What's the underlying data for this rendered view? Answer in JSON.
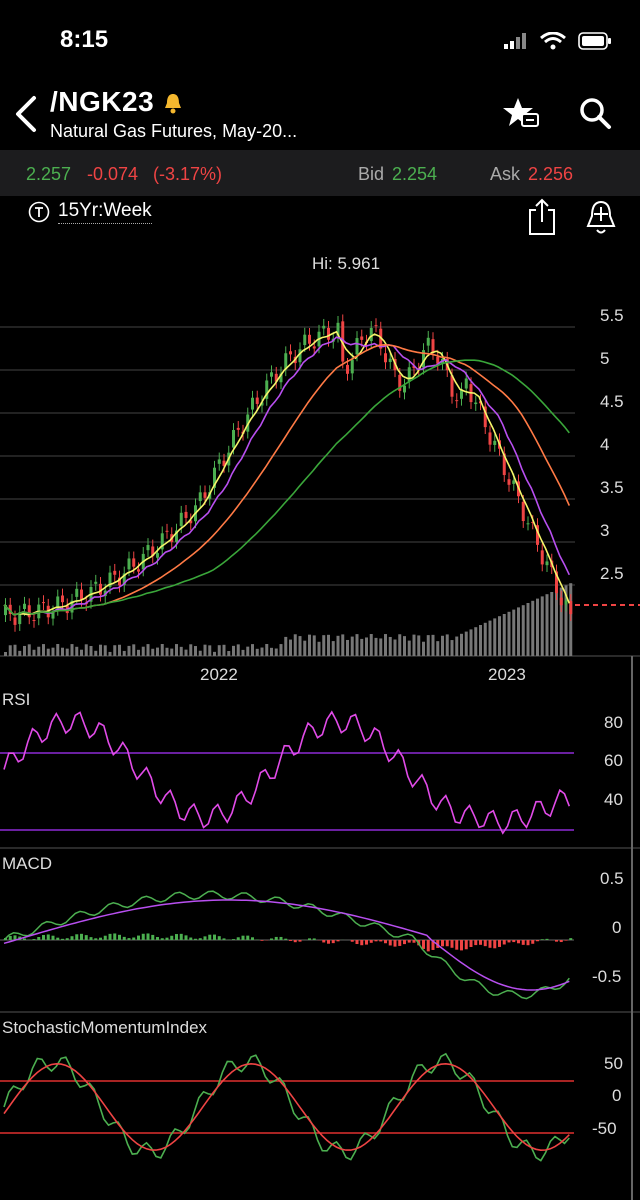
{
  "status": {
    "time": "8:15"
  },
  "header": {
    "symbol": "/NGK23",
    "description": "Natural Gas Futures, May-20..."
  },
  "quote": {
    "last": "2.257",
    "change": "-0.074",
    "change_pct": "(-3.17%)",
    "bid_label": "Bid",
    "bid": "2.254",
    "ask_label": "Ask",
    "ask": "2.256"
  },
  "timeframe": {
    "label": "15Yr:Week"
  },
  "price_chart": {
    "hi_label": "Hi: 5.961",
    "y_ticks": [
      "5.5",
      "5",
      "4.5",
      "4",
      "3.5",
      "3",
      "2.5"
    ],
    "x_ticks": [
      "2022",
      "2023"
    ]
  },
  "rsi": {
    "label": "RSI",
    "y_ticks": [
      "80",
      "60",
      "40"
    ]
  },
  "macd": {
    "label": "MACD",
    "y_ticks": [
      "0.5",
      "0",
      "-0.5"
    ]
  },
  "smi": {
    "label": "StochasticMomentumIndex",
    "y_ticks": [
      "50",
      "0",
      "-50"
    ]
  },
  "colors": {
    "up": "#4caf50",
    "down": "#ef4444",
    "ma_fast": "#f5f56a",
    "ma_mid": "#b84ff0",
    "ma_slow": "#ff7a45",
    "ma_long": "#3aa63a",
    "rsi_line": "#e14be8",
    "band_line": "#8e2bd6",
    "smi_band": "#e0312f"
  },
  "chart_data": {
    "type": "candlestick",
    "y_range": [
      2.0,
      6.0
    ],
    "hi": 5.961,
    "last": 2.257
  }
}
